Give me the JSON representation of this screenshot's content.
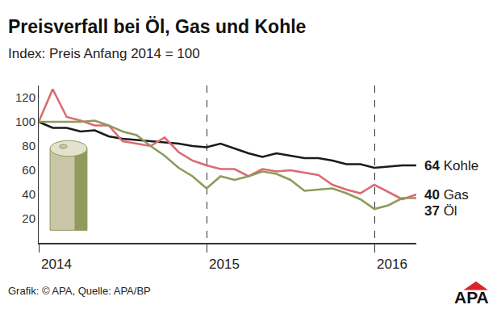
{
  "chart_data": {
    "type": "line",
    "title": "Preisverfall bei Öl, Gas und Kohle",
    "subtitle": "Index: Preis Anfang 2014 = 100",
    "source": "Grafik: © APA, Quelle: APA/BP",
    "logo": "APA",
    "categories": [
      "2014",
      null,
      null,
      null,
      null,
      null,
      null,
      null,
      null,
      null,
      null,
      null,
      "2015",
      null,
      null,
      null,
      null,
      null,
      null,
      null,
      null,
      null,
      null,
      null,
      "2016",
      null,
      null,
      null
    ],
    "series": [
      {
        "name": "Kohle",
        "color": "#1a1a1a",
        "values": [
          100,
          95,
          95,
          92,
          93,
          88,
          86,
          85,
          84,
          83,
          82,
          80,
          79,
          82,
          78,
          74,
          71,
          74,
          72,
          70,
          70,
          68,
          65,
          65,
          62,
          63,
          64,
          64
        ]
      },
      {
        "name": "Gas",
        "color": "#dc6b72",
        "values": [
          100,
          127,
          104,
          101,
          97,
          97,
          84,
          82,
          80,
          87,
          75,
          68,
          64,
          61,
          61,
          55,
          61,
          59,
          60,
          58,
          56,
          48,
          44,
          41,
          48,
          42,
          36,
          40
        ]
      },
      {
        "name": "Öl",
        "color": "#8f9a5c",
        "values": [
          100,
          100,
          100,
          100,
          101,
          97,
          92,
          89,
          80,
          72,
          62,
          55,
          45,
          55,
          52,
          55,
          59,
          57,
          52,
          43,
          44,
          45,
          41,
          36,
          28,
          31,
          37,
          37
        ]
      }
    ],
    "ylim": [
      0,
      130
    ],
    "yticks": [
      20,
      40,
      60,
      80,
      100,
      120
    ],
    "grid": "x",
    "line_style": "solid"
  }
}
